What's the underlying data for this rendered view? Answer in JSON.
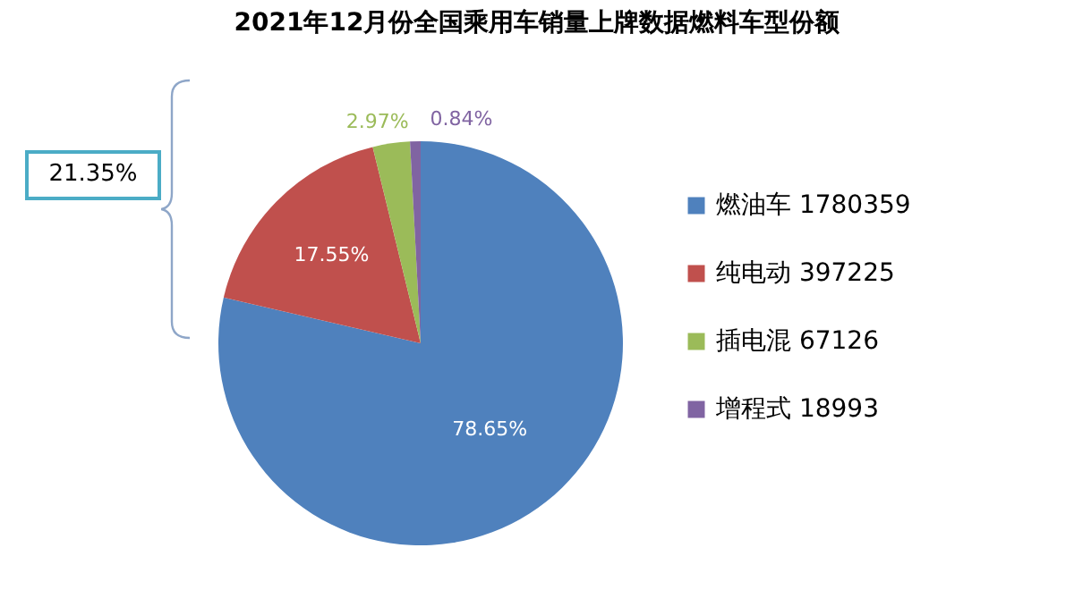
{
  "chart_data": {
    "type": "pie",
    "title": "2021年12月份全国乘用车销量上牌数据燃料车型份额",
    "categories": [
      "燃油车 1780359",
      "纯电动 397225",
      "插电混 67126",
      "增程式 18993"
    ],
    "values": [
      78.65,
      17.55,
      2.97,
      0.84
    ],
    "value_labels": [
      "78.65%",
      "17.55%",
      "2.97%",
      "0.84%"
    ],
    "colors": [
      "#4f81bd",
      "#c0504d",
      "#9bbb59",
      "#8064a2"
    ],
    "legend": "right",
    "annotations": [
      "21.35%"
    ]
  }
}
